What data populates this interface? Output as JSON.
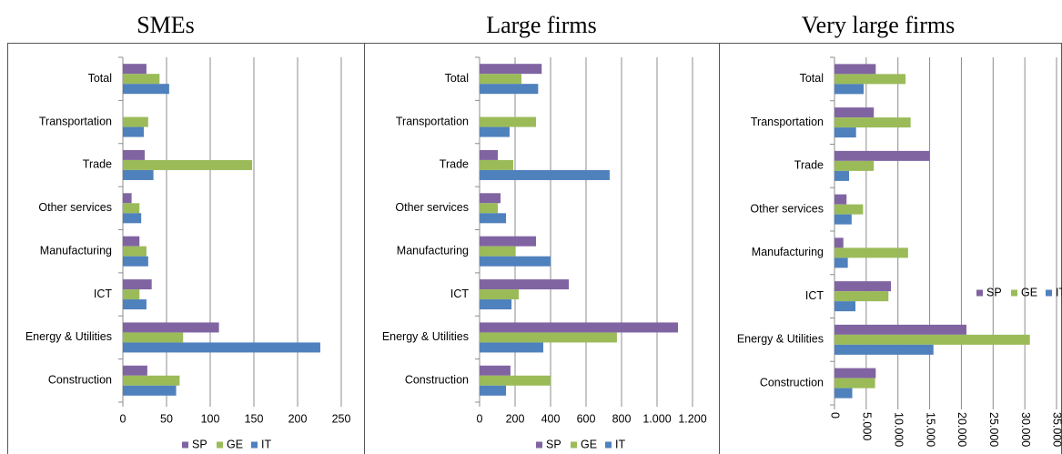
{
  "chart_data": [
    {
      "type": "bar",
      "orientation": "horizontal",
      "title": "SMEs",
      "categories": [
        "Construction",
        "Energy & Utilities",
        "ICT",
        "Manufacturing",
        "Other services",
        "Trade",
        "Transportation",
        "Total"
      ],
      "series": [
        {
          "name": "SP",
          "color": "#8064a2",
          "values": [
            28,
            110,
            33,
            19,
            10,
            25,
            null,
            27
          ]
        },
        {
          "name": "GE",
          "color": "#9bbb59",
          "values": [
            65,
            69,
            19,
            27,
            19,
            148,
            29,
            42
          ]
        },
        {
          "name": "IT",
          "color": "#4f81bd",
          "values": [
            61,
            226,
            27,
            29,
            21,
            35,
            24,
            53
          ]
        }
      ],
      "xlim": [
        0,
        250
      ],
      "xticks": [
        0,
        50,
        100,
        150,
        200,
        250
      ],
      "grid": true,
      "legend": "bottom"
    },
    {
      "type": "bar",
      "orientation": "horizontal",
      "title": "Large firms",
      "categories": [
        "Construction",
        "Energy & Utilities",
        "ICT",
        "Manufacturing",
        "Other services",
        "Trade",
        "Transportation",
        "Total"
      ],
      "series": [
        {
          "name": "SP",
          "color": "#8064a2",
          "values": [
            174,
            1118,
            503,
            318,
            118,
            103,
            null,
            350
          ]
        },
        {
          "name": "GE",
          "color": "#9bbb59",
          "values": [
            400,
            774,
            221,
            200,
            103,
            190,
            318,
            236
          ]
        },
        {
          "name": "IT",
          "color": "#4f81bd",
          "values": [
            149,
            359,
            180,
            400,
            149,
            733,
            169,
            330
          ]
        }
      ],
      "xlim": [
        0,
        1200
      ],
      "xticks": [
        0,
        200,
        400,
        600,
        800,
        {
          "value": 1000,
          "label": "1.000"
        },
        {
          "value": 1200,
          "label": "1.200"
        }
      ],
      "grid": true,
      "legend": "bottom"
    },
    {
      "type": "bar",
      "orientation": "horizontal",
      "title": "Very large firms",
      "categories": [
        "Construction",
        "Energy & Utilities",
        "ICT",
        "Manufacturing",
        "Other services",
        "Trade",
        "Transportation",
        "Total"
      ],
      "series": [
        {
          "name": "SP",
          "color": "#8064a2",
          "values": [
            6500,
            20800,
            8900,
            1400,
            1900,
            15000,
            6200,
            6500
          ]
        },
        {
          "name": "GE",
          "color": "#9bbb59",
          "values": [
            6400,
            30800,
            8500,
            11600,
            4500,
            6200,
            12000,
            11200
          ]
        },
        {
          "name": "IT",
          "color": "#4f81bd",
          "values": [
            2800,
            15600,
            3300,
            2100,
            2700,
            2300,
            3400,
            4600
          ]
        }
      ],
      "xlim": [
        0,
        35000
      ],
      "xticks": [
        0,
        {
          "value": 5000,
          "label": "5.000"
        },
        {
          "value": 10000,
          "label": "10.000"
        },
        {
          "value": 15000,
          "label": "15.000"
        },
        {
          "value": 20000,
          "label": "20.000"
        },
        {
          "value": 25000,
          "label": "25.000"
        },
        {
          "value": 30000,
          "label": "30.000"
        },
        {
          "value": 35000,
          "label": "35.000"
        }
      ],
      "grid": true,
      "legend": "right",
      "rotate_ticks": true
    }
  ]
}
